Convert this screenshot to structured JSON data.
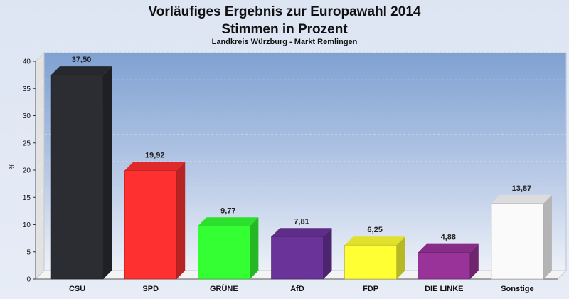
{
  "chart_data": {
    "type": "bar",
    "title_line1": "Vorläufiges Ergebnis zur Europawahl 2014",
    "title_line2": "Stimmen in Prozent",
    "subtitle": "Landkreis Würzburg - Markt Remlingen",
    "xlabel": "",
    "ylabel": "%",
    "ylim": [
      0,
      40
    ],
    "yticks": [
      0,
      5,
      10,
      15,
      20,
      25,
      30,
      35,
      40
    ],
    "grid": true,
    "categories": [
      "CSU",
      "SPD",
      "GRÜNE",
      "AfD",
      "FDP",
      "DIE LINKE",
      "Sonstige"
    ],
    "values": [
      37.5,
      19.92,
      9.77,
      7.81,
      6.25,
      4.88,
      13.87
    ],
    "value_labels": [
      "37,50",
      "19,92",
      "9,77",
      "7,81",
      "6,25",
      "4,88",
      "13,87"
    ],
    "colors": [
      "#2b2d33",
      "#ff3030",
      "#33ff33",
      "#6a3399",
      "#ffff33",
      "#993399",
      "#fafafa"
    ]
  }
}
